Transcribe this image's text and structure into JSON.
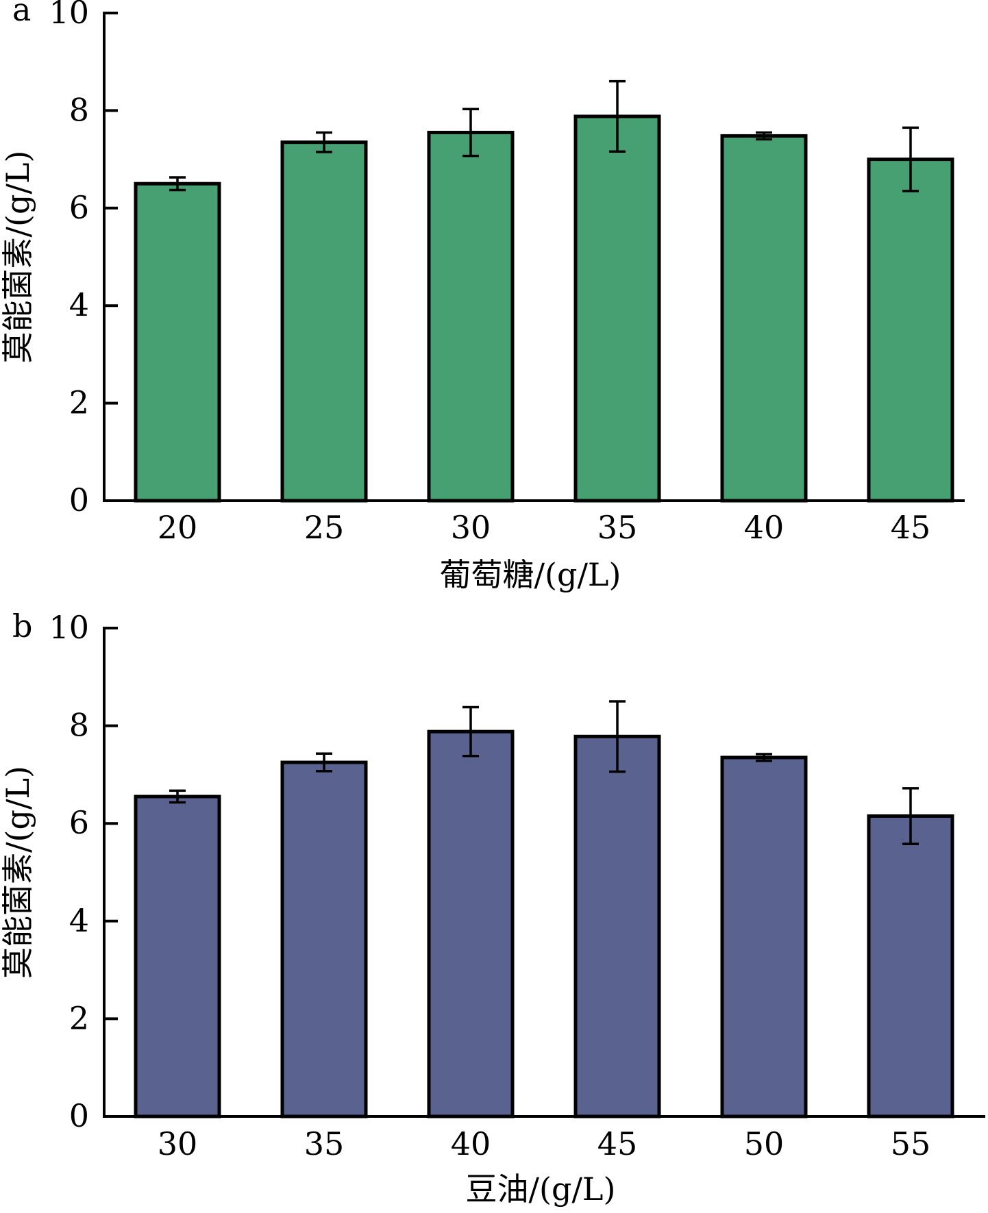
{
  "chart_data": [
    {
      "type": "bar",
      "panel_label": "a",
      "categories": [
        "20",
        "25",
        "30",
        "35",
        "40",
        "45"
      ],
      "values": [
        6.5,
        7.35,
        7.55,
        7.88,
        7.48,
        7.0
      ],
      "errors": [
        0.13,
        0.2,
        0.48,
        0.72,
        0.07,
        0.65
      ],
      "xlabel": "葡萄糖/(g/L)",
      "ylabel": "莫能菌素/(g/L)",
      "ylim": [
        0,
        10
      ],
      "yticks": [
        "0",
        "2",
        "4",
        "6",
        "8",
        "10"
      ],
      "bar_color": "#47a072",
      "grid": false
    },
    {
      "type": "bar",
      "panel_label": "b",
      "categories": [
        "30",
        "35",
        "40",
        "45",
        "50",
        "55"
      ],
      "values": [
        6.55,
        7.25,
        7.88,
        7.78,
        7.35,
        6.15
      ],
      "errors": [
        0.12,
        0.18,
        0.5,
        0.72,
        0.07,
        0.57
      ],
      "xlabel": "豆油/(g/L)",
      "ylabel": "莫能菌素/(g/L)",
      "ylim": [
        0,
        10
      ],
      "yticks": [
        "0",
        "2",
        "4",
        "6",
        "8",
        "10"
      ],
      "bar_color": "#5a638f",
      "grid": false
    }
  ]
}
